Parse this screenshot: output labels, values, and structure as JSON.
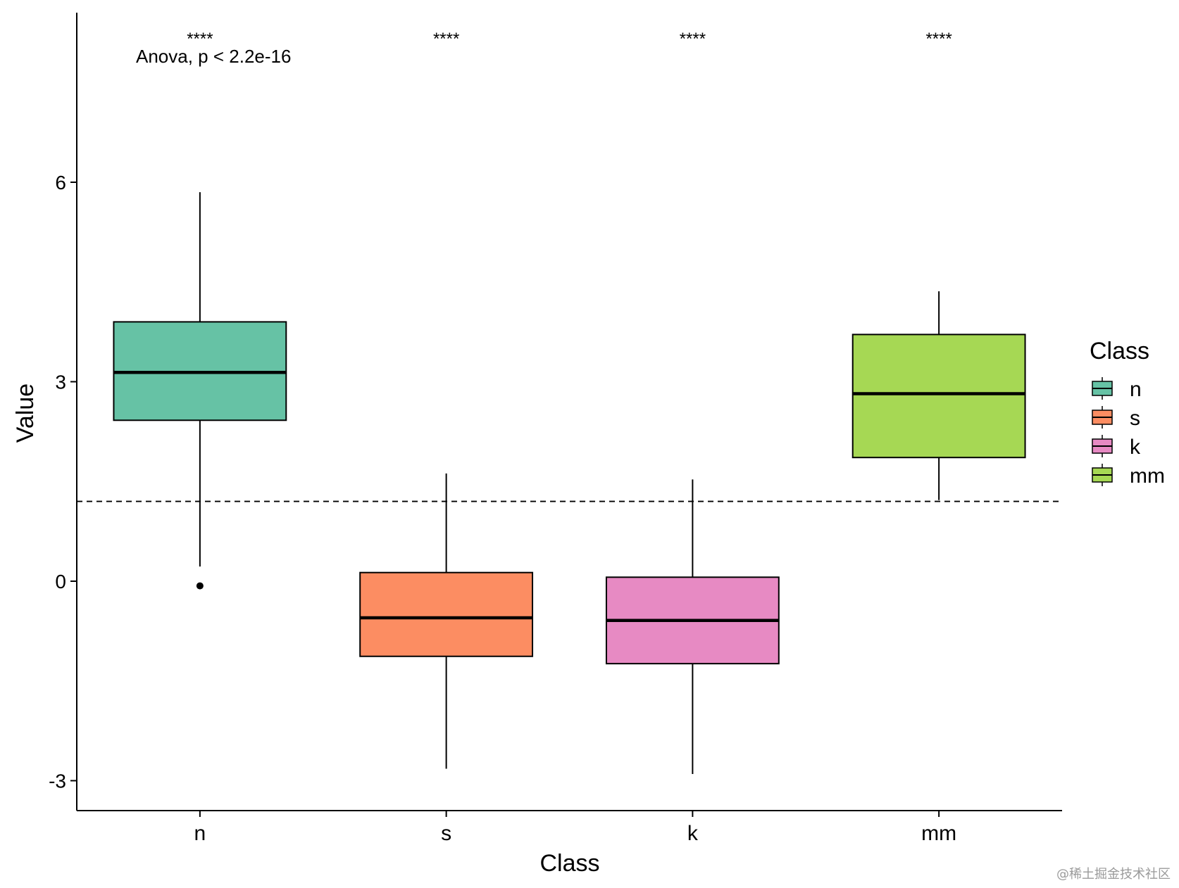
{
  "chart_data": {
    "type": "boxplot",
    "xlabel": "Class",
    "ylabel": "Value",
    "ylim": [
      -3.45,
      8.55
    ],
    "yticks": [
      -3,
      0,
      3,
      6
    ],
    "ytick_labels": [
      "-3",
      "0",
      "3",
      "6"
    ],
    "categories": [
      "n",
      "s",
      "k",
      "mm"
    ],
    "colors": [
      "#66c2a5",
      "#fc8d62",
      "#e78ac3",
      "#a6d854"
    ],
    "boxes": [
      {
        "name": "n",
        "whisker_low": 0.22,
        "q1": 2.42,
        "median": 3.14,
        "q3": 3.9,
        "whisker_high": 5.85,
        "outliers": [
          -0.07
        ]
      },
      {
        "name": "s",
        "whisker_low": -2.82,
        "q1": -1.13,
        "median": -0.55,
        "q3": 0.13,
        "whisker_high": 1.62,
        "outliers": []
      },
      {
        "name": "k",
        "whisker_low": -2.9,
        "q1": -1.24,
        "median": -0.59,
        "q3": 0.06,
        "whisker_high": 1.53,
        "outliers": []
      },
      {
        "name": "mm",
        "whisker_low": 1.22,
        "q1": 1.86,
        "median": 2.82,
        "q3": 3.71,
        "whisker_high": 4.36,
        "outliers": []
      }
    ],
    "reference_line": {
      "value": 1.2,
      "style": "dashed"
    },
    "significance_labels": [
      "****",
      "****",
      "****",
      "****"
    ],
    "significance_y": 8.2,
    "anova_text": "Anova, p < 2.2e-16",
    "legend": {
      "title": "Class",
      "entries": [
        "n",
        "s",
        "k",
        "mm"
      ],
      "placement": "right"
    }
  },
  "watermark": "@稀土掘金技术社区"
}
